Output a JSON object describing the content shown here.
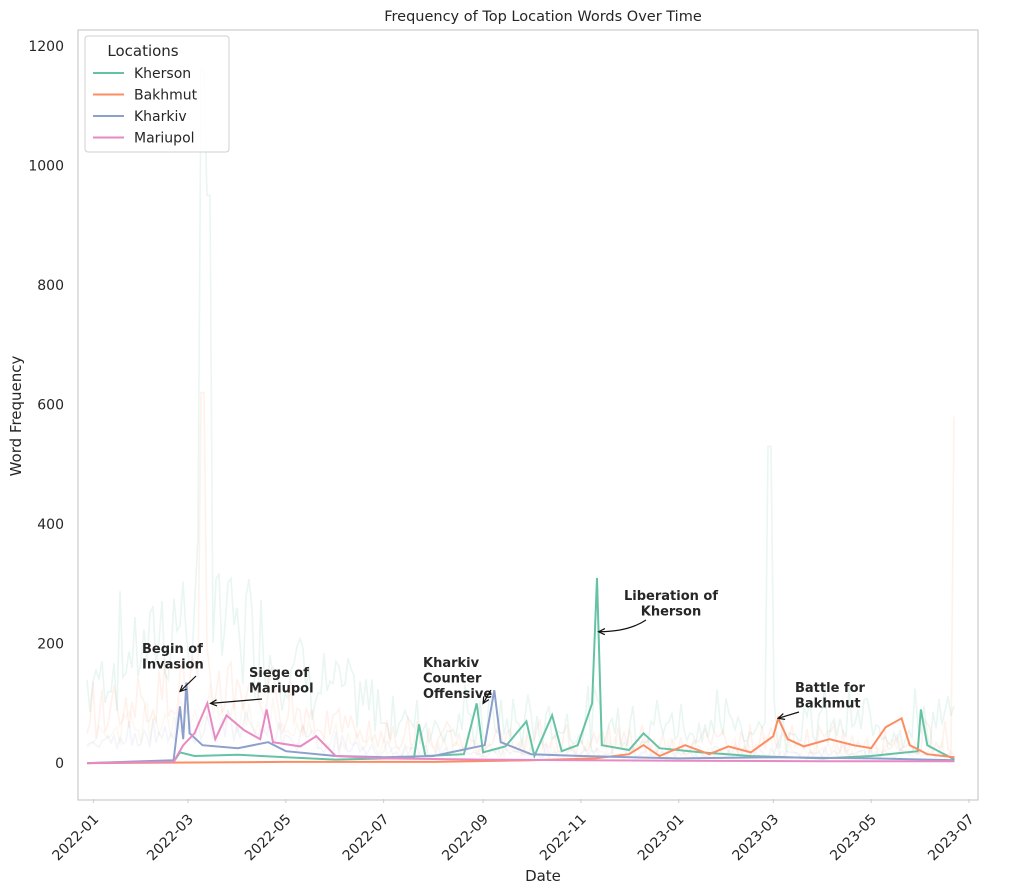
{
  "chart_data": {
    "type": "line",
    "title": "Frequency of Top Location Words Over Time",
    "xlabel": "Date",
    "ylabel": "Word Frequency",
    "xlim": [
      "2021-12-23",
      "2023-07-06"
    ],
    "ylim": [
      -60,
      1225
    ],
    "grid": false,
    "x_ticks": [
      "2022-01",
      "2022-03",
      "2022-05",
      "2022-07",
      "2022-09",
      "2022-11",
      "2023-01",
      "2023-03",
      "2023-05",
      "2023-07"
    ],
    "y_ticks": [
      0,
      200,
      400,
      600,
      800,
      1000,
      1200
    ],
    "legend": {
      "title": "Locations",
      "position": "top-left"
    },
    "series": [
      {
        "name": "Kherson",
        "color": "#66c2a5",
        "values": [
          [
            "2021-12-28",
            0
          ],
          [
            "2022-02-20",
            2
          ],
          [
            "2022-02-24",
            18
          ],
          [
            "2022-03-05",
            12
          ],
          [
            "2022-04-01",
            14
          ],
          [
            "2022-05-01",
            10
          ],
          [
            "2022-06-01",
            6
          ],
          [
            "2022-07-01",
            8
          ],
          [
            "2022-07-20",
            10
          ],
          [
            "2022-07-23",
            65
          ],
          [
            "2022-07-27",
            12
          ],
          [
            "2022-08-20",
            15
          ],
          [
            "2022-08-28",
            100
          ],
          [
            "2022-09-01",
            18
          ],
          [
            "2022-09-15",
            28
          ],
          [
            "2022-09-28",
            70
          ],
          [
            "2022-10-03",
            12
          ],
          [
            "2022-10-14",
            80
          ],
          [
            "2022-10-20",
            20
          ],
          [
            "2022-10-30",
            30
          ],
          [
            "2022-11-08",
            100
          ],
          [
            "2022-11-11",
            310
          ],
          [
            "2022-11-14",
            30
          ],
          [
            "2022-12-01",
            22
          ],
          [
            "2022-12-10",
            50
          ],
          [
            "2022-12-20",
            25
          ],
          [
            "2023-01-15",
            18
          ],
          [
            "2023-02-15",
            12
          ],
          [
            "2023-04-01",
            8
          ],
          [
            "2023-05-01",
            12
          ],
          [
            "2023-05-30",
            20
          ],
          [
            "2023-06-01",
            90
          ],
          [
            "2023-06-05",
            30
          ],
          [
            "2023-06-22",
            6
          ]
        ]
      },
      {
        "name": "Bakhmut",
        "color": "#fc8d62",
        "values": [
          [
            "2021-12-28",
            0
          ],
          [
            "2022-05-01",
            2
          ],
          [
            "2022-08-01",
            2
          ],
          [
            "2022-10-01",
            5
          ],
          [
            "2022-11-10",
            8
          ],
          [
            "2022-12-01",
            15
          ],
          [
            "2022-12-10",
            30
          ],
          [
            "2022-12-20",
            12
          ],
          [
            "2023-01-05",
            30
          ],
          [
            "2023-01-20",
            15
          ],
          [
            "2023-02-01",
            28
          ],
          [
            "2023-02-15",
            18
          ],
          [
            "2023-03-01",
            45
          ],
          [
            "2023-03-04",
            75
          ],
          [
            "2023-03-10",
            40
          ],
          [
            "2023-03-20",
            28
          ],
          [
            "2023-04-05",
            40
          ],
          [
            "2023-04-20",
            30
          ],
          [
            "2023-05-01",
            25
          ],
          [
            "2023-05-10",
            60
          ],
          [
            "2023-05-20",
            75
          ],
          [
            "2023-05-25",
            30
          ],
          [
            "2023-06-05",
            15
          ],
          [
            "2023-06-22",
            10
          ]
        ]
      },
      {
        "name": "Kharkiv",
        "color": "#8da0cb",
        "values": [
          [
            "2021-12-28",
            0
          ],
          [
            "2022-02-20",
            5
          ],
          [
            "2022-02-24",
            95
          ],
          [
            "2022-02-26",
            40
          ],
          [
            "2022-02-28",
            135
          ],
          [
            "2022-03-02",
            50
          ],
          [
            "2022-03-10",
            30
          ],
          [
            "2022-04-01",
            25
          ],
          [
            "2022-04-20",
            35
          ],
          [
            "2022-05-01",
            20
          ],
          [
            "2022-06-01",
            12
          ],
          [
            "2022-07-01",
            10
          ],
          [
            "2022-08-01",
            12
          ],
          [
            "2022-09-02",
            30
          ],
          [
            "2022-09-08",
            122
          ],
          [
            "2022-09-12",
            35
          ],
          [
            "2022-10-01",
            15
          ],
          [
            "2022-11-01",
            12
          ],
          [
            "2023-01-01",
            8
          ],
          [
            "2023-03-01",
            10
          ],
          [
            "2023-05-01",
            8
          ],
          [
            "2023-06-22",
            5
          ]
        ]
      },
      {
        "name": "Mariupol",
        "color": "#e78ac3",
        "values": [
          [
            "2021-12-28",
            0
          ],
          [
            "2022-02-20",
            2
          ],
          [
            "2022-02-26",
            30
          ],
          [
            "2022-03-05",
            50
          ],
          [
            "2022-03-13",
            100
          ],
          [
            "2022-03-18",
            40
          ],
          [
            "2022-03-25",
            80
          ],
          [
            "2022-04-05",
            55
          ],
          [
            "2022-04-15",
            40
          ],
          [
            "2022-04-19",
            90
          ],
          [
            "2022-04-23",
            35
          ],
          [
            "2022-05-10",
            28
          ],
          [
            "2022-05-20",
            45
          ],
          [
            "2022-06-01",
            12
          ],
          [
            "2022-07-01",
            8
          ],
          [
            "2022-09-01",
            6
          ],
          [
            "2022-11-01",
            5
          ],
          [
            "2023-01-01",
            4
          ],
          [
            "2023-04-01",
            3
          ],
          [
            "2023-06-22",
            3
          ]
        ]
      }
    ],
    "annotations": [
      {
        "lines": [
          "Begin of",
          "Invasion"
        ],
        "target": [
          "2022-02-24",
          120
        ]
      },
      {
        "lines": [
          "Siege of",
          "Mariupol"
        ],
        "target": [
          "2022-03-15",
          100
        ]
      },
      {
        "lines": [
          "Kharkiv",
          "Counter",
          "Offensive"
        ],
        "target": [
          "2022-09-01",
          100
        ]
      },
      {
        "lines": [
          "Liberation of",
          "Kherson"
        ],
        "target": [
          "2022-11-12",
          220
        ]
      },
      {
        "lines": [
          "Battle for",
          "Bakhmut"
        ],
        "target": [
          "2023-03-04",
          75
        ]
      }
    ]
  }
}
